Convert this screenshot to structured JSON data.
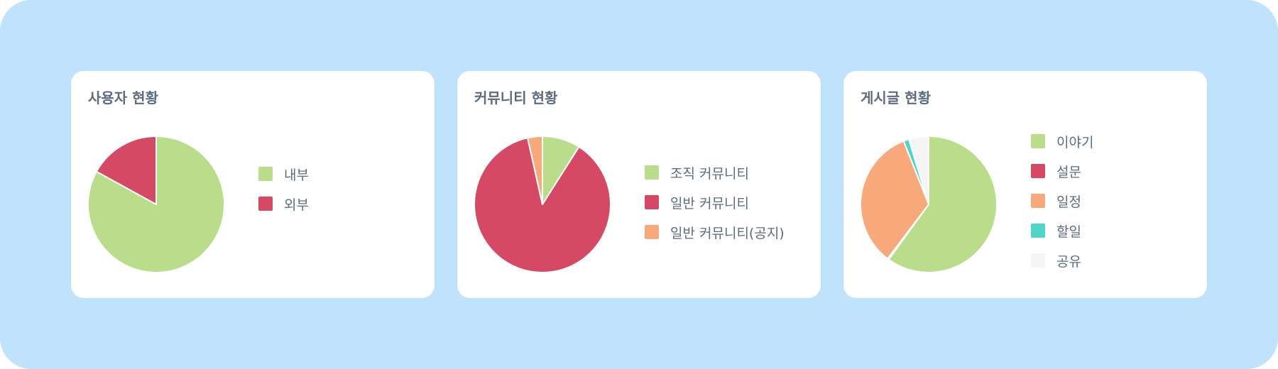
{
  "colors": {
    "background": "#bfe3fd",
    "card": "#ffffff",
    "text": "#5c6b80"
  },
  "chart_data": [
    {
      "type": "pie",
      "title": "사용자 현황",
      "start": "top",
      "direction": "clockwise",
      "legend_position": "right",
      "labels": [
        "내부",
        "외부"
      ],
      "values": [
        83,
        17
      ],
      "colors": [
        "#b9dd8b",
        "#d64964"
      ]
    },
    {
      "type": "pie",
      "title": "커뮤니티 현황",
      "start": "top",
      "direction": "clockwise",
      "legend_position": "right",
      "labels": [
        "조직 커뮤니티",
        "일반 커뮤니티",
        "일반 커뮤니티(공지)"
      ],
      "values": [
        9,
        87.5,
        3.5
      ],
      "colors": [
        "#b9dd8b",
        "#d64964",
        "#f7a97c"
      ]
    },
    {
      "type": "pie",
      "title": "게시글 현황",
      "start": "top",
      "direction": "clockwise",
      "legend_position": "right",
      "labels": [
        "이야기",
        "설문",
        "일정",
        "할일",
        "공유"
      ],
      "values": [
        60,
        0.3,
        33.7,
        1.3,
        4.7
      ],
      "colors": [
        "#b9dd8b",
        "#d64964",
        "#f7a97c",
        "#4fd6c8",
        "#f5f5f5"
      ]
    }
  ]
}
